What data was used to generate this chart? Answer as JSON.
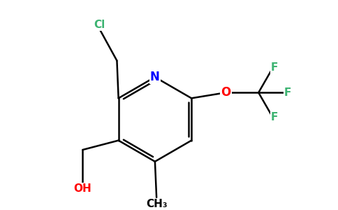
{
  "background_color": "#ffffff",
  "bond_color": "#000000",
  "atom_colors": {
    "N": "#0000ff",
    "O": "#ff0000",
    "Cl": "#3cb371",
    "F": "#3cb371"
  },
  "figsize": [
    4.84,
    3.0
  ],
  "dpi": 100,
  "lw": 1.8
}
